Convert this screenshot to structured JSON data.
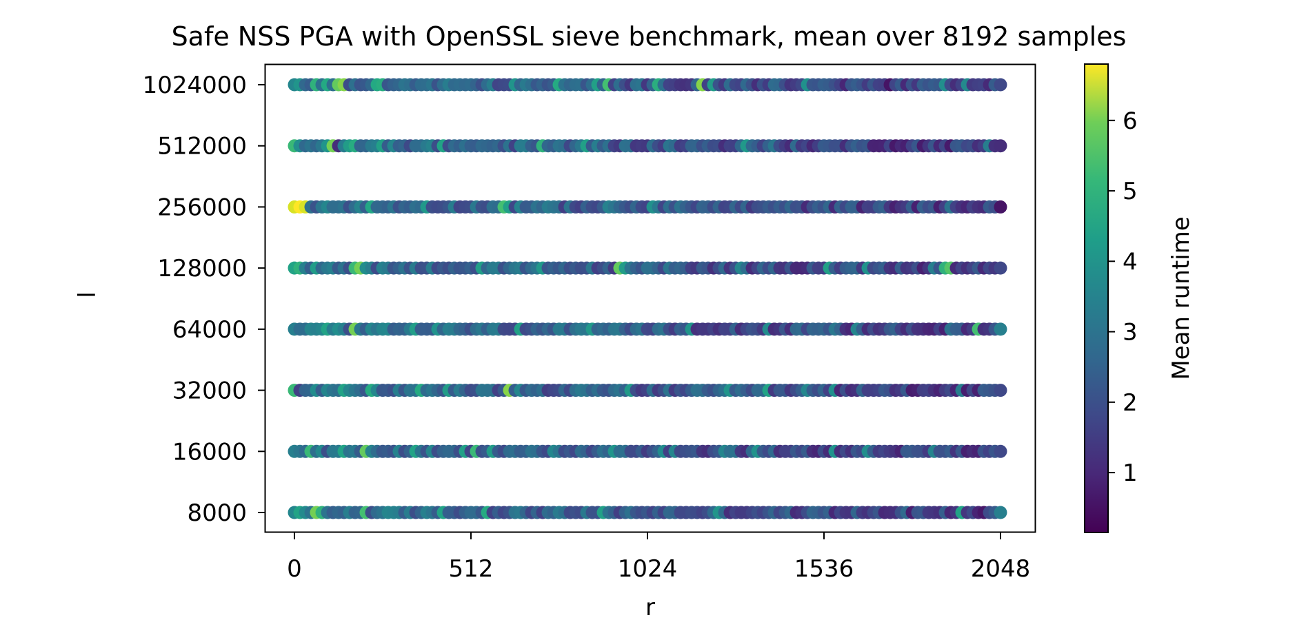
{
  "chart_data": {
    "type": "scatter",
    "title": "Safe NSS PGA with OpenSSL sieve benchmark, mean over 8192 samples",
    "xlabel": "r",
    "ylabel": "l",
    "x_ticks": [
      0,
      512,
      1024,
      1536,
      2048
    ],
    "x_tick_labels": [
      "0",
      "512",
      "1024",
      "1536",
      "2048"
    ],
    "xlim": [
      -84,
      2148
    ],
    "y_levels": [
      8000,
      16000,
      32000,
      64000,
      128000,
      256000,
      512000,
      1024000
    ],
    "y_tick_labels": [
      "8000",
      "16000",
      "32000",
      "64000",
      "128000",
      "256000",
      "512000",
      "1024000"
    ],
    "y_scale": "log2",
    "colorbar": {
      "label": "Mean runtime",
      "colormap": "viridis",
      "range": [
        0.15,
        6.8
      ],
      "ticks": [
        1,
        2,
        3,
        4,
        5,
        6
      ],
      "tick_labels": [
        "1",
        "2",
        "3",
        "4",
        "5",
        "6"
      ]
    },
    "r_step": 16,
    "r_max": 2048,
    "series_highlights": [
      {
        "l": 1024000,
        "points": [
          [
            0,
            3.2
          ],
          [
            16,
            3.6
          ],
          [
            64,
            4.4
          ],
          [
            80,
            2.6
          ],
          [
            128,
            5.2
          ],
          [
            144,
            5.6
          ],
          [
            768,
            4.2
          ],
          [
            880,
            3.9
          ],
          [
            912,
            4.8
          ],
          [
            1056,
            4.3
          ],
          [
            1184,
            5.6
          ],
          [
            1216,
            3.8
          ],
          [
            1488,
            3.5
          ],
          [
            1728,
            0.5
          ],
          [
            2048,
            1.6
          ]
        ]
      },
      {
        "l": 512000,
        "points": [
          [
            0,
            4.6
          ],
          [
            16,
            3.4
          ],
          [
            96,
            3.6
          ],
          [
            112,
            5.4
          ],
          [
            128,
            1.0
          ],
          [
            160,
            3.8
          ],
          [
            432,
            4.0
          ],
          [
            720,
            4.4
          ],
          [
            848,
            3.9
          ],
          [
            1312,
            3.7
          ],
          [
            1744,
            0.6
          ],
          [
            2048,
            1.0
          ]
        ]
      },
      {
        "l": 256000,
        "points": [
          [
            0,
            6.4
          ],
          [
            16,
            6.8
          ],
          [
            32,
            6.4
          ],
          [
            48,
            2.6
          ],
          [
            96,
            3.2
          ],
          [
            384,
            3.7
          ],
          [
            608,
            4.8
          ],
          [
            624,
            3.9
          ],
          [
            1040,
            3.5
          ],
          [
            2048,
            0.5
          ]
        ]
      },
      {
        "l": 128000,
        "points": [
          [
            0,
            4.0
          ],
          [
            16,
            4.4
          ],
          [
            64,
            3.8
          ],
          [
            96,
            2.8
          ],
          [
            176,
            4.6
          ],
          [
            192,
            5.4
          ],
          [
            944,
            5.2
          ],
          [
            960,
            3.8
          ],
          [
            1552,
            3.9
          ],
          [
            1888,
            4.4
          ],
          [
            1904,
            5.0
          ],
          [
            2048,
            1.6
          ]
        ]
      },
      {
        "l": 64000,
        "points": [
          [
            0,
            3.0
          ],
          [
            96,
            4.0
          ],
          [
            128,
            3.4
          ],
          [
            176,
            5.4
          ],
          [
            224,
            3.2
          ],
          [
            656,
            3.9
          ],
          [
            864,
            3.7
          ],
          [
            1152,
            3.6
          ],
          [
            1984,
            4.8
          ],
          [
            2048,
            3.0
          ]
        ]
      },
      {
        "l": 32000,
        "points": [
          [
            0,
            4.6
          ],
          [
            16,
            1.4
          ],
          [
            144,
            4.0
          ],
          [
            368,
            4.2
          ],
          [
            448,
            3.8
          ],
          [
            592,
            1.4
          ],
          [
            624,
            5.6
          ],
          [
            656,
            3.2
          ],
          [
            1264,
            3.6
          ],
          [
            1376,
            4.0
          ],
          [
            2048,
            1.6
          ]
        ]
      },
      {
        "l": 16000,
        "points": [
          [
            0,
            3.0
          ],
          [
            48,
            4.6
          ],
          [
            144,
            4.0
          ],
          [
            208,
            5.2
          ],
          [
            352,
            4.0
          ],
          [
            496,
            3.9
          ],
          [
            528,
            4.6
          ],
          [
            576,
            3.8
          ],
          [
            928,
            3.6
          ],
          [
            1664,
            3.4
          ],
          [
            2048,
            1.6
          ]
        ]
      },
      {
        "l": 8000,
        "points": [
          [
            0,
            3.2
          ],
          [
            16,
            4.0
          ],
          [
            64,
            5.4
          ],
          [
            80,
            4.4
          ],
          [
            208,
            4.8
          ],
          [
            432,
            4.0
          ],
          [
            560,
            4.2
          ],
          [
            896,
            3.9
          ],
          [
            1232,
            3.6
          ],
          [
            1936,
            4.0
          ],
          [
            2048,
            3.0
          ]
        ]
      }
    ],
    "grid": false,
    "legend": "none"
  }
}
